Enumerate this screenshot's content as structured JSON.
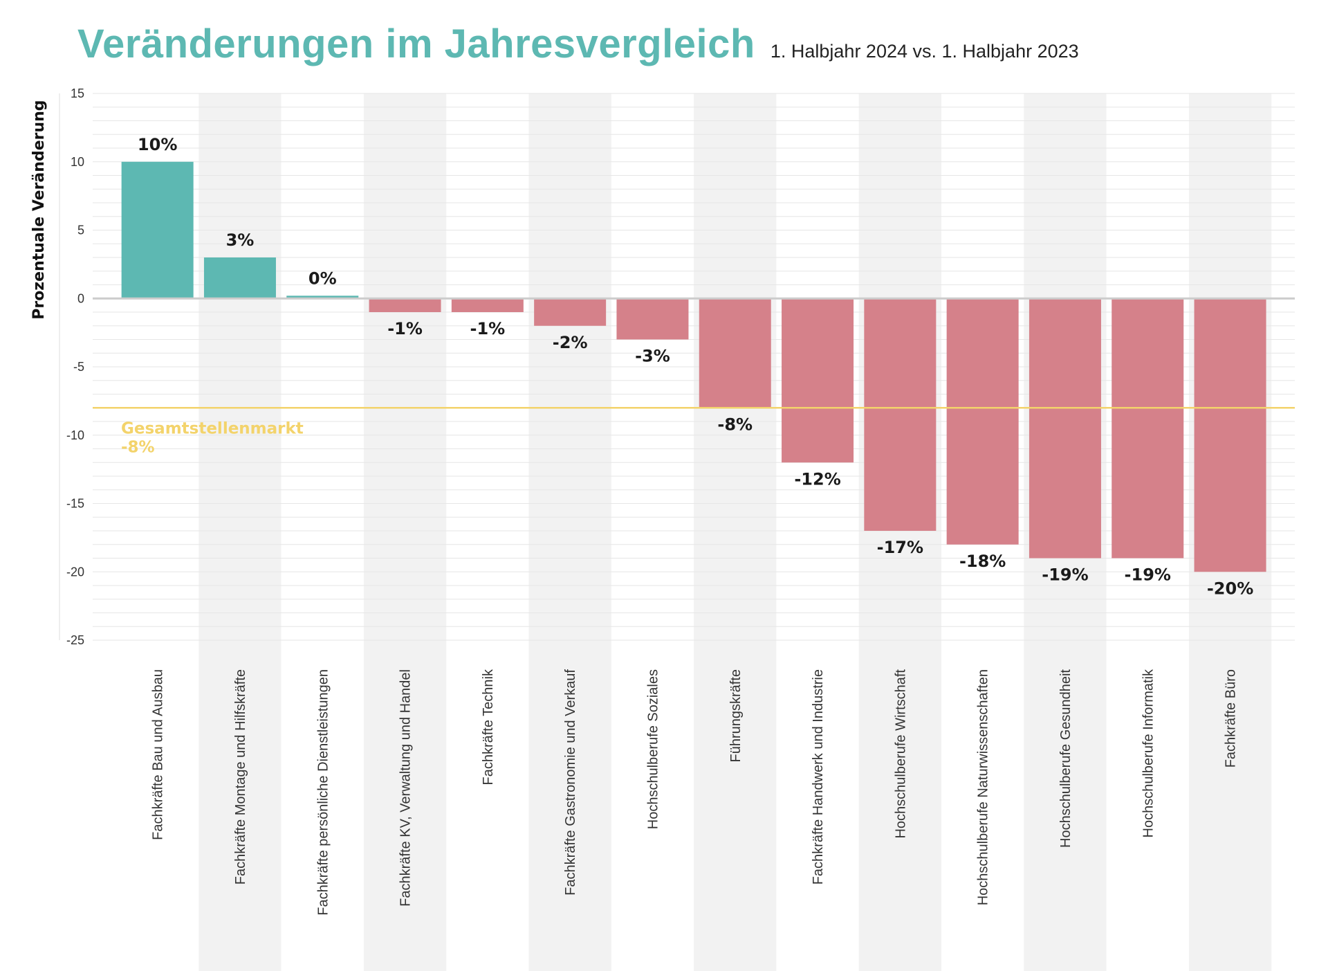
{
  "header": {
    "title": "Veränderungen im Jahresvergleich",
    "subtitle": "1. Halbjahr 2024 vs. 1. Halbjahr 2023"
  },
  "colors": {
    "positive": "#5db8b2",
    "negative": "#d5818a",
    "reference": "#f3d36b",
    "band": "#f2f2f2",
    "grid": "#e6e6e6",
    "zero_line": "#cccccc",
    "title": "#5db8b2"
  },
  "chart_data": {
    "type": "bar",
    "title": "Veränderungen im Jahresvergleich",
    "subtitle": "1. Halbjahr 2024 vs. 1. Halbjahr 2023",
    "xlabel": "",
    "ylabel": "Prozentuale Veränderung",
    "ylim": [
      -25,
      15
    ],
    "yticks": [
      15,
      10,
      5,
      0,
      -5,
      -10,
      -15,
      -20,
      -25
    ],
    "minor_grid_step": 1,
    "grid": true,
    "alternating_bands": true,
    "categories": [
      "Fachkräfte Bau und Ausbau",
      "Fachkräfte Montage und Hilfskräfte",
      "Fachkräfte persönliche Dienstleistungen",
      "Fachkräfte KV, Verwaltung und Handel",
      "Fachkräfte Technik",
      "Fachkräfte Gastronomie und Verkauf",
      "Hochschulberufe Soziales",
      "Führungskräfte",
      "Fachkräfte Handwerk und Industrie",
      "Hochschulberufe Wirtschaft",
      "Hochschulberufe Naturwissenschaften",
      "Hochschulberufe Gesundheit",
      "Hochschulberufe Informatik",
      "Fachkräfte Büro"
    ],
    "values": [
      10,
      3,
      0.2,
      -1,
      -1,
      -2,
      -3,
      -8,
      -12,
      -17,
      -18,
      -19,
      -19,
      -20
    ],
    "value_labels": [
      "10%",
      "3%",
      "0%",
      "-1%",
      "-1%",
      "-2%",
      "-3%",
      "-8%",
      "-12%",
      "-17%",
      "-18%",
      "-19%",
      "-19%",
      "-20%"
    ],
    "reference_line": {
      "value": -8,
      "label": "Gesamtstellenmarkt",
      "value_label": "-8%"
    }
  }
}
